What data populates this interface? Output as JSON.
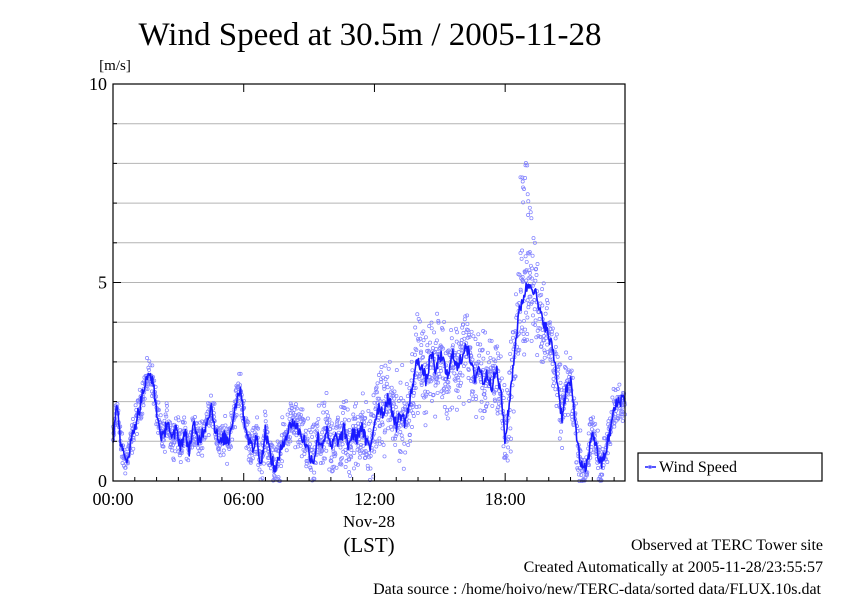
{
  "colors": {
    "background": "#ffffff",
    "axis": "#000000",
    "grid": "#b4b4b4",
    "series_line": "#1a1aff",
    "series_points": "#8080ff"
  },
  "chart_data": {
    "type": "scatter",
    "title": "Wind Speed at 30.5m / 2005-11-28",
    "ylabel": "[m/s]",
    "xlabel": "(LST)",
    "x_date_label": "Nov-28",
    "xlim_hours": [
      0,
      23.5
    ],
    "ylim": [
      0,
      10
    ],
    "x_ticks": [
      "00:00",
      "06:00",
      "12:00",
      "18:00"
    ],
    "x_tick_hours": [
      0,
      6,
      12,
      18
    ],
    "y_ticks": [
      "0",
      "5",
      "10"
    ],
    "y_tick_values": [
      0,
      5,
      10
    ],
    "y_grid_values": [
      1,
      2,
      3,
      4,
      5,
      6,
      7,
      8,
      9
    ],
    "grid": true,
    "legend": {
      "placement": "right",
      "entries": [
        "Wind Speed"
      ]
    },
    "series": [
      {
        "name": "Wind Speed",
        "style": "line+points",
        "mean_line": {
          "hour": [
            0.0,
            0.1,
            0.2,
            0.3,
            0.4,
            0.5,
            0.6,
            0.8,
            1.0,
            1.2,
            1.4,
            1.6,
            1.75,
            1.9,
            2.1,
            2.3,
            2.5,
            2.7,
            2.9,
            3.1,
            3.3,
            3.5,
            3.7,
            3.9,
            4.1,
            4.3,
            4.5,
            4.7,
            4.9,
            5.1,
            5.3,
            5.5,
            5.7,
            5.85,
            6.0,
            6.2,
            6.4,
            6.6,
            6.8,
            7.0,
            7.2,
            7.4,
            7.6,
            7.8,
            8.0,
            8.2,
            8.4,
            8.6,
            8.8,
            9.0,
            9.2,
            9.4,
            9.6,
            9.8,
            10.0,
            10.2,
            10.4,
            10.6,
            10.8,
            11.0,
            11.2,
            11.4,
            11.6,
            11.8,
            12.0,
            12.2,
            12.4,
            12.6,
            12.8,
            13.0,
            13.2,
            13.4,
            13.6,
            13.8,
            14.0,
            14.2,
            14.4,
            14.6,
            14.8,
            15.0,
            15.2,
            15.4,
            15.6,
            15.8,
            16.0,
            16.2,
            16.4,
            16.6,
            16.8,
            17.0,
            17.2,
            17.4,
            17.6,
            17.8,
            17.9,
            18.0,
            18.2,
            18.4,
            18.6,
            18.8,
            19.0,
            19.2,
            19.4,
            19.6,
            19.8,
            20.0,
            20.2,
            20.4,
            20.6,
            20.8,
            21.0,
            21.2,
            21.4,
            21.6,
            21.8,
            22.0,
            22.2,
            22.4,
            22.6,
            22.8,
            23.0,
            23.2,
            23.4
          ],
          "value": [
            1.0,
            1.5,
            2.0,
            1.2,
            0.8,
            0.6,
            0.5,
            0.9,
            1.4,
            1.8,
            2.3,
            2.6,
            2.7,
            2.2,
            1.4,
            1.0,
            1.6,
            1.0,
            1.3,
            0.9,
            1.2,
            0.8,
            1.4,
            1.0,
            1.2,
            1.5,
            1.9,
            1.3,
            0.9,
            1.1,
            1.0,
            1.6,
            2.1,
            2.4,
            1.6,
            1.1,
            0.8,
            1.1,
            0.4,
            1.3,
            0.7,
            0.3,
            0.5,
            1.0,
            1.2,
            1.5,
            1.4,
            1.2,
            1.0,
            0.7,
            0.5,
            1.1,
            0.9,
            1.3,
            0.8,
            1.1,
            1.0,
            1.3,
            0.9,
            1.2,
            1.1,
            1.4,
            1.0,
            0.8,
            1.5,
            1.9,
            1.7,
            2.1,
            1.8,
            1.4,
            1.7,
            1.5,
            1.9,
            2.6,
            3.1,
            2.8,
            2.5,
            3.3,
            2.7,
            3.2,
            2.9,
            2.6,
            3.3,
            2.8,
            3.1,
            3.5,
            3.0,
            2.6,
            2.9,
            2.5,
            2.7,
            2.4,
            2.8,
            2.2,
            1.7,
            1.0,
            2.0,
            3.1,
            4.1,
            4.6,
            4.9,
            5.0,
            4.7,
            4.2,
            4.0,
            3.6,
            3.3,
            2.5,
            1.6,
            2.3,
            2.5,
            1.6,
            0.6,
            0.2,
            0.5,
            1.3,
            0.8,
            0.4,
            0.7,
            1.2,
            1.8,
            2.0,
            2.1
          ]
        },
        "scatter_spread": {
          "hour": [
            0.0,
            2.0,
            4.0,
            6.0,
            8.0,
            9.0,
            10.0,
            11.0,
            12.0,
            13.0,
            14.0,
            15.0,
            16.0,
            17.0,
            18.0,
            18.5,
            19.0,
            19.5,
            20.0,
            21.0,
            22.0,
            23.5
          ],
          "half_width": [
            0.35,
            0.4,
            0.4,
            0.45,
            0.5,
            0.7,
            0.8,
            0.85,
            0.9,
            1.0,
            1.0,
            1.0,
            1.0,
            0.95,
            1.0,
            1.3,
            1.5,
            1.2,
            0.9,
            0.7,
            0.5,
            0.45
          ]
        },
        "scatter_max_value": 8.1,
        "scatter_max_hour": 18.95
      }
    ]
  },
  "footer": {
    "line1": "Observed at TERC Tower site",
    "line2": "Created Automatically at 2005-11-28/23:55:57",
    "line3": "Data source : /home/hoivo/new/TERC-data/sorted  data/FLUX.10s.dat"
  }
}
